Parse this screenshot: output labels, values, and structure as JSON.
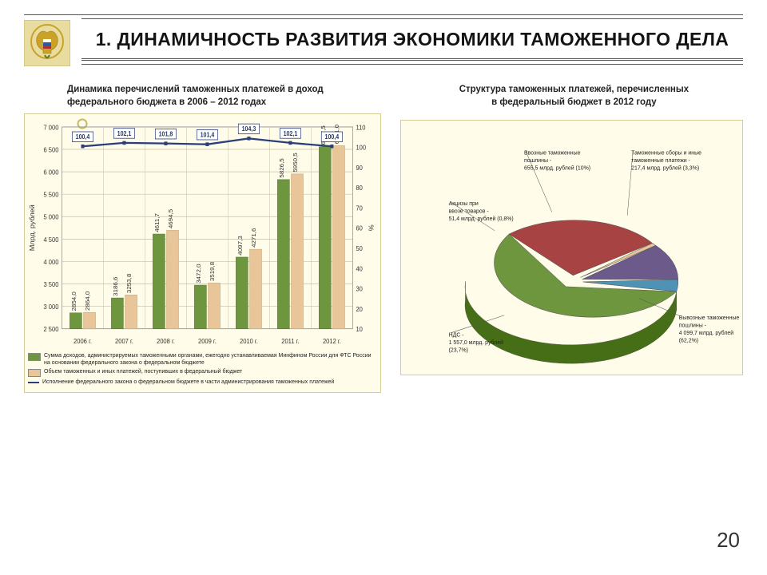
{
  "slide_number": "20",
  "title": "1. ДИНАМИЧНОСТЬ РАЗВИТИЯ ЭКОНОМИКИ ТАМОЖЕННОГО ДЕЛА",
  "left_chart": {
    "type": "bar+line dual-axis",
    "title_line1": "Динамика перечислений таможенных платежей в доход",
    "title_line2": "федерального бюджета в 2006 – 2012 годах",
    "background_color": "#fffde9",
    "grid_color": "#c7c0a0",
    "categories": [
      "2006 г.",
      "2007 г.",
      "2008 г.",
      "2009 г.",
      "2010 г.",
      "2011 г.",
      "2012 г."
    ],
    "y1_label": "Млрд. рублей",
    "y1_min": 2500,
    "y1_max": 7000,
    "y1_step": 500,
    "y2_label": "%",
    "y2_min": 10,
    "y2_max": 110,
    "y2_step": 10,
    "series": [
      {
        "name": "Сумма доходов, администрируемых таможенными органами, ежегодно устанавливаемая Минфином России для ФТС России на основании федерального закона о федеральном бюджете",
        "kind": "bar",
        "color": "#6e963e",
        "border": "#5a7a33",
        "values": [
          2854.0,
          3186.6,
          4611.7,
          3472.0,
          4097.3,
          5826.5,
          6557.5
        ]
      },
      {
        "name": "Объем таможенных и иных платежей, поступивших в федеральный бюджет",
        "kind": "bar",
        "color": "#e9c69a",
        "border": "#c9a676",
        "values": [
          2864.0,
          3253.8,
          4694.5,
          3519.8,
          4271.6,
          5950.5,
          6581.0
        ]
      },
      {
        "name": "Исполнение федерального закона о федеральном бюджете в части администрирования таможенных платежей",
        "kind": "line",
        "color": "#2a3f7a",
        "axis": "y2",
        "values": [
          100.4,
          102.1,
          101.8,
          101.4,
          104.3,
          102.1,
          100.4
        ],
        "label_bg": "#ffffff",
        "label_border": "#2a3f7a"
      }
    ],
    "bar_group_width": 0.62,
    "bar_gap": 0.04
  },
  "right_chart": {
    "type": "pie-3d-exploded",
    "title_line1": "Структура таможенных платежей, перечисленных",
    "title_line2": "в федеральный бюджет в 2012 году",
    "background_color": "#fffde9",
    "slices": [
      {
        "label_l1": "Вывозные таможенные",
        "label_l2": "пошлины -",
        "label_l3": "4 099,7 млрд. рублей",
        "label_l4": "(62,2%)",
        "value": 62.2,
        "color": "#6e963e"
      },
      {
        "label_l1": "НДС -",
        "label_l2": "1 557,0 млрд. рублей",
        "label_l3": "(23,7%)",
        "value": 23.7,
        "color": "#a84344"
      },
      {
        "label_l1": "Акцизы при",
        "label_l2": "ввозе товаров -",
        "label_l3": "51,4 млрд. рублей (0,8%)",
        "value": 0.8,
        "color": "#e9c69a"
      },
      {
        "label_l1": "Ввозные таможенные",
        "label_l2": "пошлины -",
        "label_l3": "655,5 млрд. рублей (10%)",
        "value": 10.0,
        "color": "#6b5a8a"
      },
      {
        "label_l1": "Таможенные сборы и иные",
        "label_l2": "таможенные платежи -",
        "label_l3": "217,4 млрд. рублей (3,3%)",
        "value": 3.3,
        "color": "#4e93b5"
      }
    ],
    "label_positions": "callout"
  },
  "logo": {
    "bg": "#e9dca0",
    "emblem_color": "#c9a227",
    "flag_colors": [
      "#ffffff",
      "#2b5aa0",
      "#b03030"
    ],
    "caduceus_color": "#5a7a33"
  }
}
